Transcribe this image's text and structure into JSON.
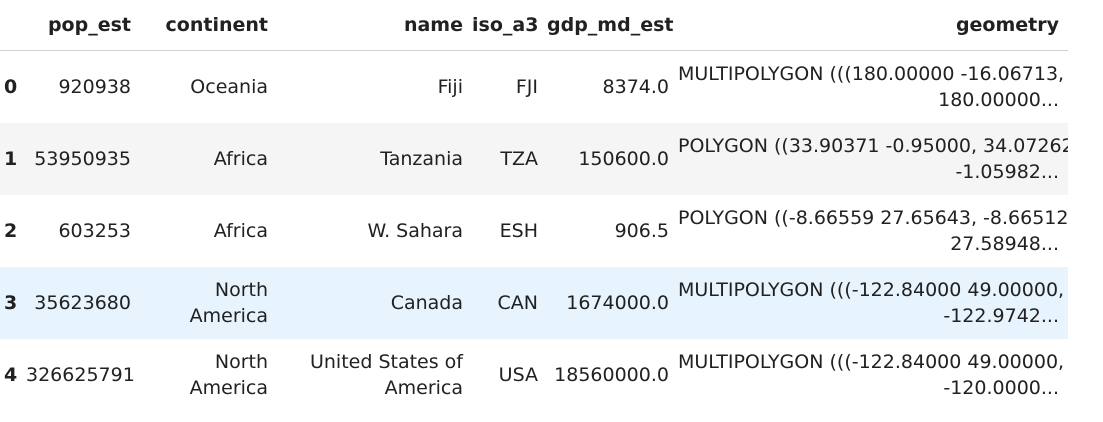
{
  "table": {
    "index_header": "",
    "columns": [
      "pop_est",
      "continent",
      "name",
      "iso_a3",
      "gdp_md_est",
      "geometry"
    ],
    "rows": [
      {
        "index": "0",
        "pop_est": "920938",
        "continent": [
          "Oceania"
        ],
        "name": [
          "Fiji"
        ],
        "iso_a3": "FJI",
        "gdp_md_est": "8374.0",
        "geometry": [
          "MULTIPOLYGON (((180.00000 -16.06713,",
          "180.00000..."
        ]
      },
      {
        "index": "1",
        "pop_est": "53950935",
        "continent": [
          "Africa"
        ],
        "name": [
          "Tanzania"
        ],
        "iso_a3": "TZA",
        "gdp_md_est": "150600.0",
        "geometry": [
          "POLYGON ((33.90371 -0.95000, 34.07262",
          "-1.05982..."
        ]
      },
      {
        "index": "2",
        "pop_est": "603253",
        "continent": [
          "Africa"
        ],
        "name": [
          "W. Sahara"
        ],
        "iso_a3": "ESH",
        "gdp_md_est": "906.5",
        "geometry": [
          "POLYGON ((-8.66559 27.65643, -8.66512",
          "27.58948..."
        ]
      },
      {
        "index": "3",
        "pop_est": "35623680",
        "continent": [
          "North",
          "America"
        ],
        "name": [
          "Canada"
        ],
        "iso_a3": "CAN",
        "gdp_md_est": "1674000.0",
        "geometry": [
          "MULTIPOLYGON (((-122.84000 49.00000,",
          "-122.9742..."
        ]
      },
      {
        "index": "4",
        "pop_est": "326625791",
        "continent": [
          "North",
          "America"
        ],
        "name": [
          "United States of",
          "America"
        ],
        "iso_a3": "USA",
        "gdp_md_est": "18560000.0",
        "geometry": [
          "MULTIPOLYGON (((-122.84000 49.00000,",
          "-120.0000..."
        ]
      }
    ]
  }
}
